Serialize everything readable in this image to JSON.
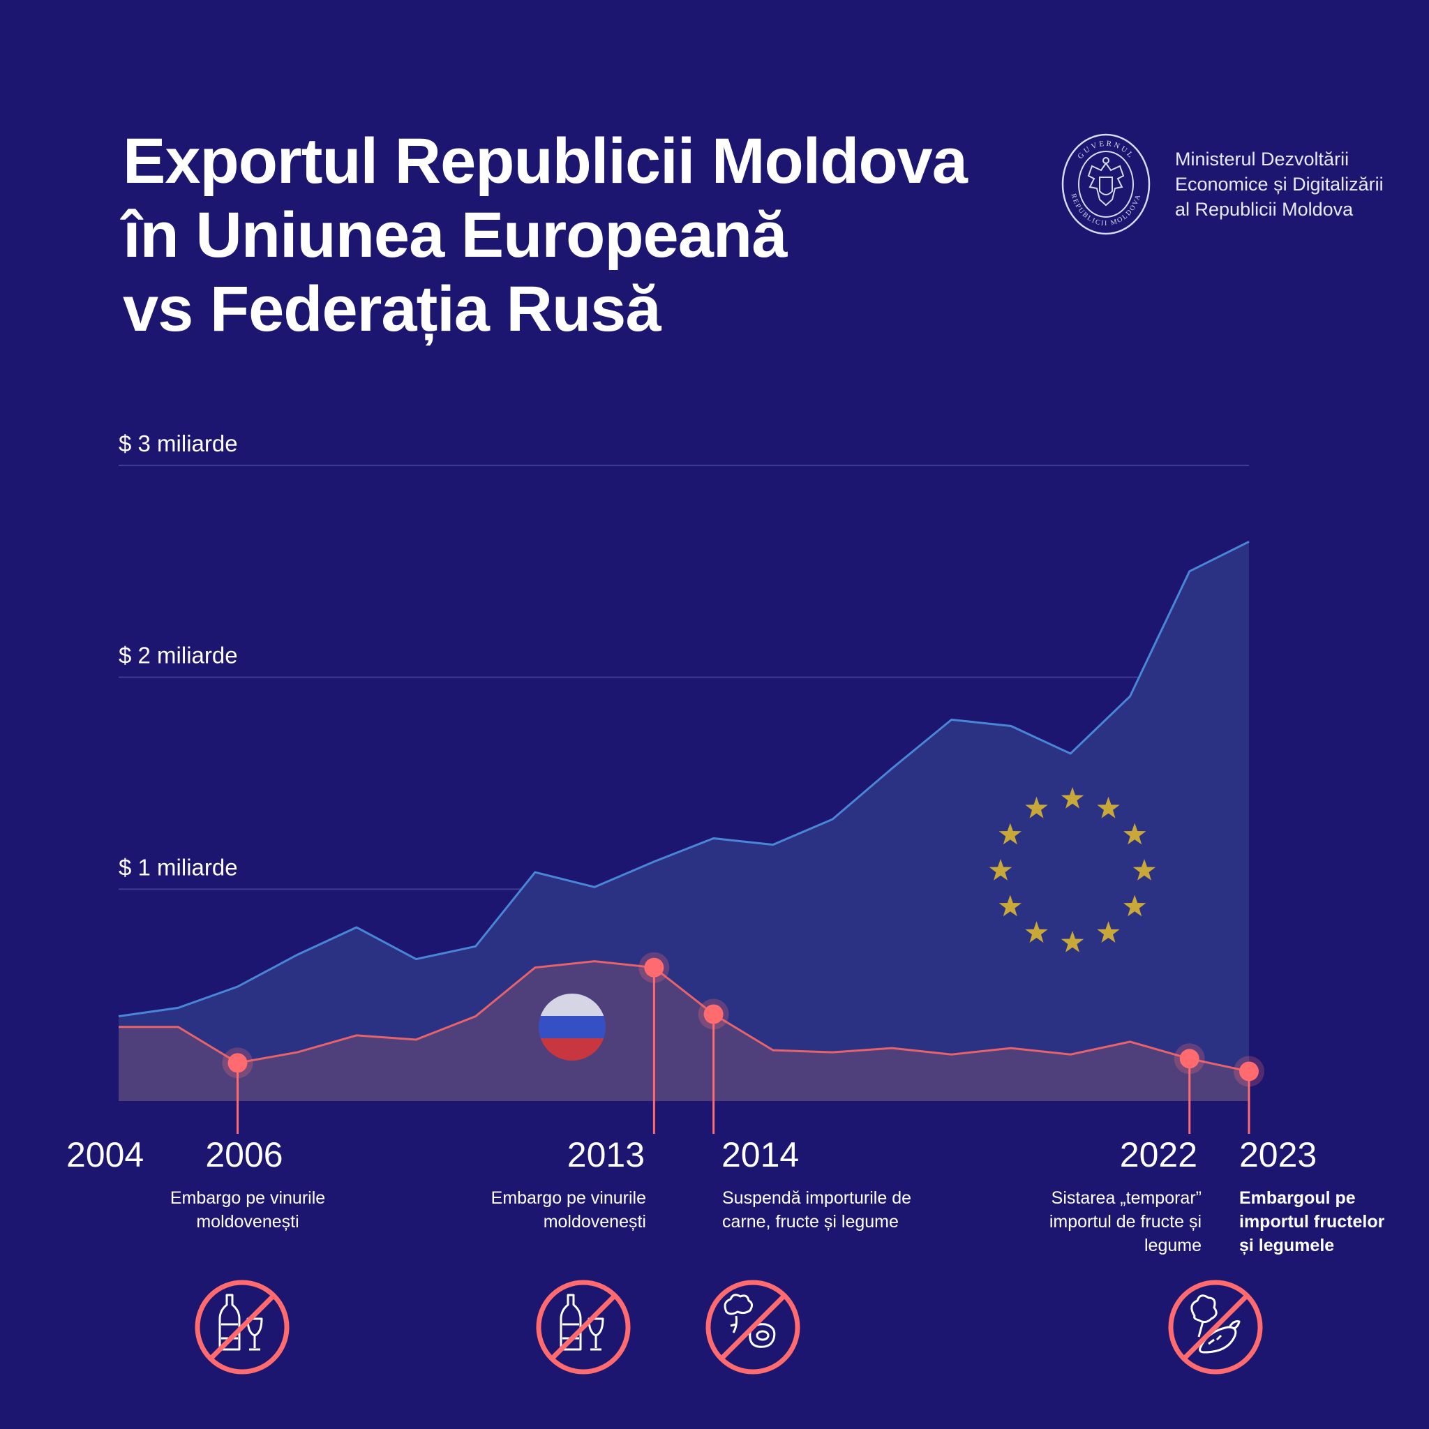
{
  "title": {
    "line1": "Exportul Republicii Moldova",
    "line2": "în Uniunea Europeană",
    "line3": "vs Federația Rusă"
  },
  "ministry": {
    "line1": "Ministerul Dezvoltării",
    "line2": "Economice și Digitalizării",
    "line3": "al Republicii Moldova",
    "seal_top_text": "GUVERNUL",
    "seal_bottom_text": "REPUBLICII MOLDOVA"
  },
  "colors": {
    "background": "#1c1670",
    "eu_line": "#4a86d8",
    "eu_fill": "#2c3283",
    "ru_line": "#e5636b",
    "ru_fill": "#4f407c",
    "marker": "#ff6b6e",
    "eu_stars": "#c9a83a"
  },
  "chart_data": {
    "type": "area",
    "x": [
      2004,
      2005,
      2006,
      2007,
      2008,
      2009,
      2010,
      2011,
      2012,
      2013,
      2014,
      2015,
      2016,
      2017,
      2018,
      2019,
      2020,
      2021,
      2022,
      2023
    ],
    "series": [
      {
        "name": "EU",
        "icon": "eu-flag",
        "values": [
          0.4,
          0.44,
          0.54,
          0.69,
          0.82,
          0.67,
          0.73,
          1.08,
          1.01,
          1.13,
          1.24,
          1.21,
          1.33,
          1.57,
          1.8,
          1.77,
          1.64,
          1.91,
          2.5,
          2.64
        ]
      },
      {
        "name": "Russia",
        "icon": "russia-flag",
        "values": [
          0.35,
          0.35,
          0.18,
          0.23,
          0.31,
          0.29,
          0.4,
          0.63,
          0.66,
          0.63,
          0.41,
          0.24,
          0.23,
          0.25,
          0.22,
          0.25,
          0.22,
          0.28,
          0.2,
          0.14
        ]
      }
    ],
    "y_ticks": [
      {
        "value": 3,
        "label": "$ 3 miliarde"
      },
      {
        "value": 2,
        "label": "$ 2 miliarde"
      },
      {
        "value": 1,
        "label": "$ 1 miliarde"
      }
    ],
    "ylim": [
      0,
      3
    ],
    "x_start_label": "2004",
    "events": [
      {
        "year": 2006,
        "label": "2006",
        "caption": [
          "Embargo pe vinurile",
          "moldovenești"
        ],
        "icon": "no-wine-icon",
        "bold": false,
        "align": "center"
      },
      {
        "year": 2013,
        "label": "2013",
        "caption": [
          "Embargo pe vinurile",
          "moldovenești"
        ],
        "icon": "no-wine-icon",
        "bold": false,
        "align": "right"
      },
      {
        "year": 2014,
        "label": "2014",
        "caption": [
          "Suspendă importurile de",
          "carne, fructe și legume"
        ],
        "icon": "no-meat-vegetables-icon",
        "bold": false,
        "align": "left"
      },
      {
        "year": 2022,
        "label": "2022",
        "caption": [
          "Sistarea „temporar”",
          "importul de fructe și",
          "legume"
        ],
        "icon": "no-vegetables-icon",
        "bold": false,
        "align": "right"
      },
      {
        "year": 2023,
        "label": "2023",
        "caption": [
          "Embargoul pe",
          "importul fructelor",
          "și legumele"
        ],
        "icon": "",
        "bold": true,
        "align": "left"
      }
    ]
  }
}
